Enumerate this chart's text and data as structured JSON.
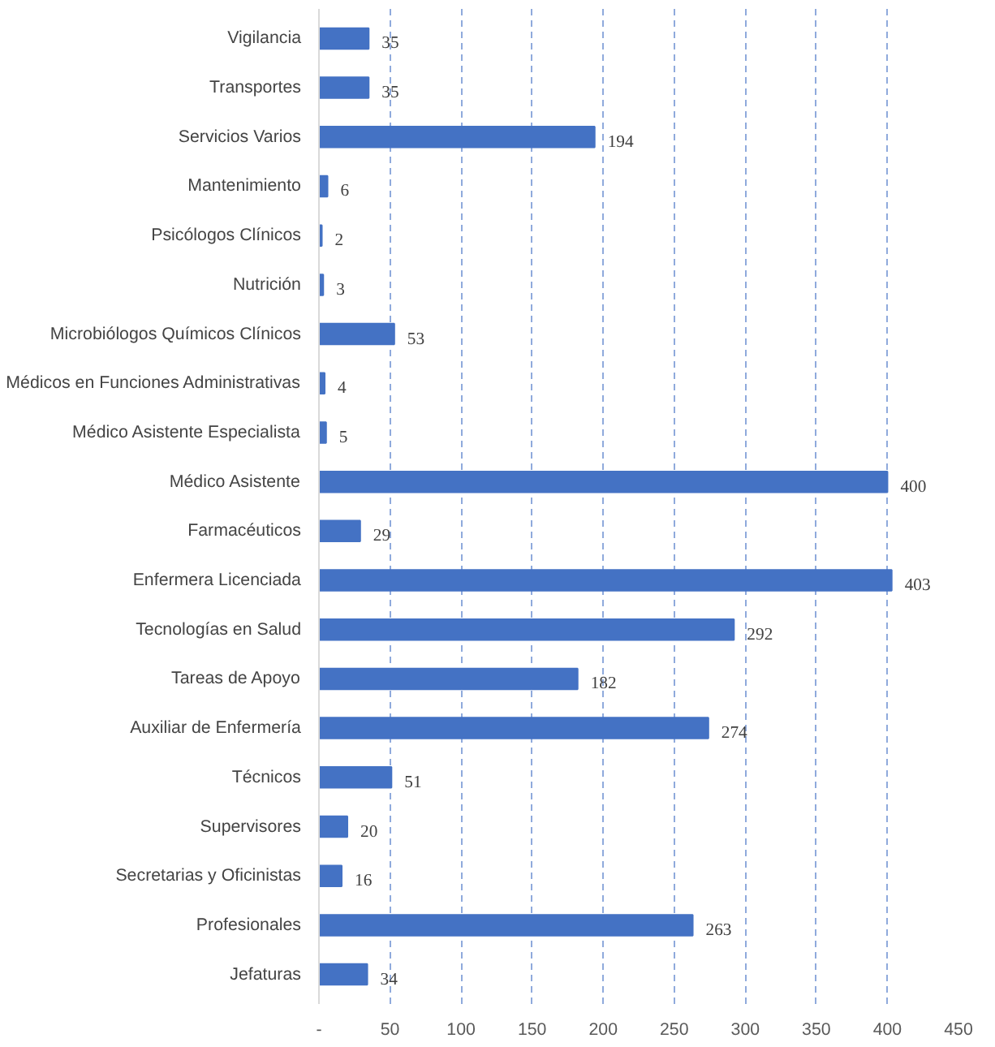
{
  "chart_data": {
    "type": "bar",
    "orientation": "horizontal",
    "categories": [
      "Vigilancia",
      "Transportes",
      "Servicios Varios",
      "Mantenimiento",
      "Psicólogos Clínicos",
      "Nutrición",
      "Microbiólogos Químicos Clínicos",
      "Médicos en Funciones Administrativas",
      "Médico Asistente Especialista",
      "Médico Asistente",
      "Farmacéuticos",
      "Enfermera Licenciada",
      "Tecnologías en Salud",
      "Tareas de Apoyo",
      "Auxiliar de Enfermería",
      "Técnicos",
      "Supervisores",
      "Secretarias y Oficinistas",
      "Profesionales",
      "Jefaturas"
    ],
    "values": [
      35,
      35,
      194,
      6,
      2,
      3,
      53,
      4,
      5,
      400,
      29,
      403,
      292,
      182,
      274,
      51,
      20,
      16,
      263,
      34
    ],
    "color": "#4472c4",
    "xlim": [
      0,
      450
    ],
    "xticks": [
      {
        "value": 0,
        "label": "-"
      },
      50,
      100,
      150,
      200,
      250,
      300,
      350,
      400,
      450
    ],
    "grid": "x",
    "data_labels": true
  }
}
